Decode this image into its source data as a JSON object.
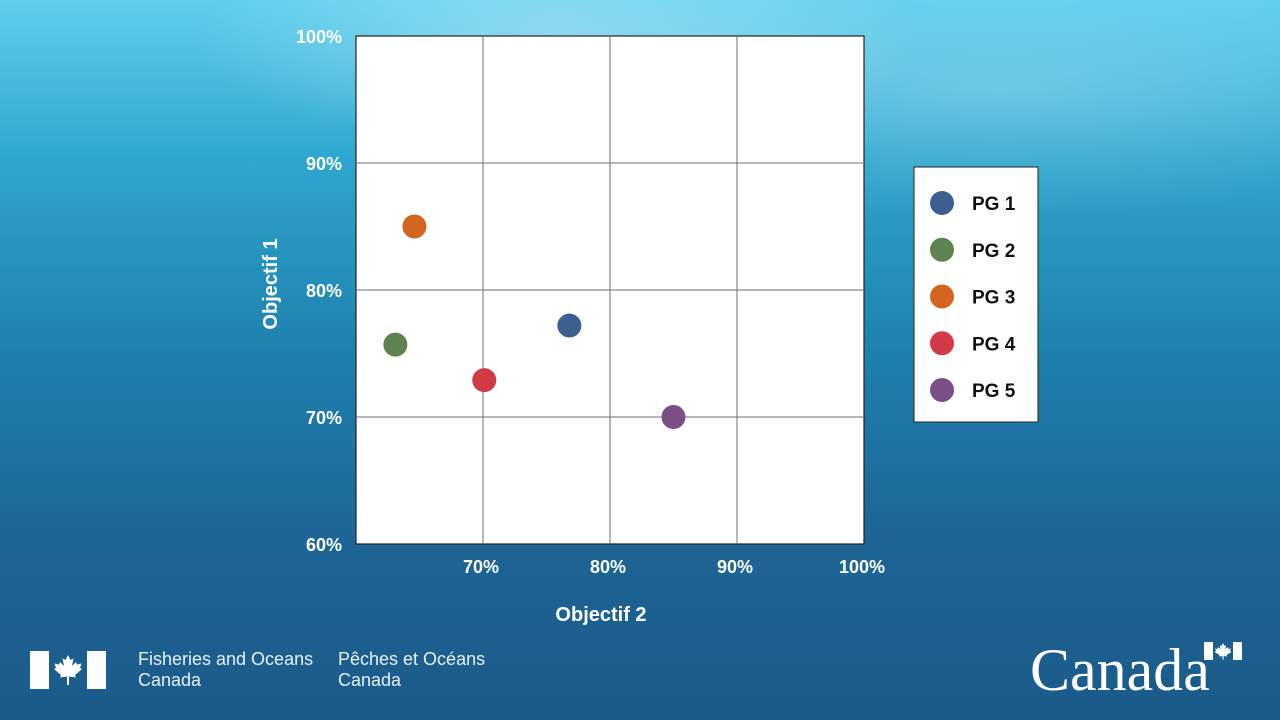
{
  "chart_data": {
    "type": "scatter",
    "xlabel": "Objectif 2",
    "ylabel": "Objectif 1",
    "xlim": [
      60,
      100
    ],
    "ylim": [
      60,
      100
    ],
    "x_ticks": [
      "70%",
      "80%",
      "90%",
      "100%"
    ],
    "y_ticks": [
      "100%",
      "90%",
      "80%",
      "70%",
      "60%"
    ],
    "grid": true,
    "legend_position": "right",
    "series": [
      {
        "name": "PG 1",
        "color": "#3d5f8f",
        "points": [
          {
            "x": 76.8,
            "y": 77.2
          }
        ]
      },
      {
        "name": "PG 2",
        "color": "#5e8350",
        "points": [
          {
            "x": 63.1,
            "y": 75.7
          }
        ]
      },
      {
        "name": "PG 3",
        "color": "#d2651f",
        "points": [
          {
            "x": 64.6,
            "y": 85.0
          }
        ]
      },
      {
        "name": "PG 4",
        "color": "#d23a48",
        "points": [
          {
            "x": 70.1,
            "y": 72.9
          }
        ]
      },
      {
        "name": "PG 5",
        "color": "#7a4f86",
        "points": [
          {
            "x": 85.0,
            "y": 70.0
          }
        ]
      }
    ]
  },
  "footer": {
    "department_en": [
      "Fisheries and Oceans",
      "Canada"
    ],
    "department_fr": [
      "Pêches et Océans",
      "Canada"
    ],
    "wordmark": "Canada",
    "colors": {
      "flag_red": "#ffffff"
    }
  }
}
